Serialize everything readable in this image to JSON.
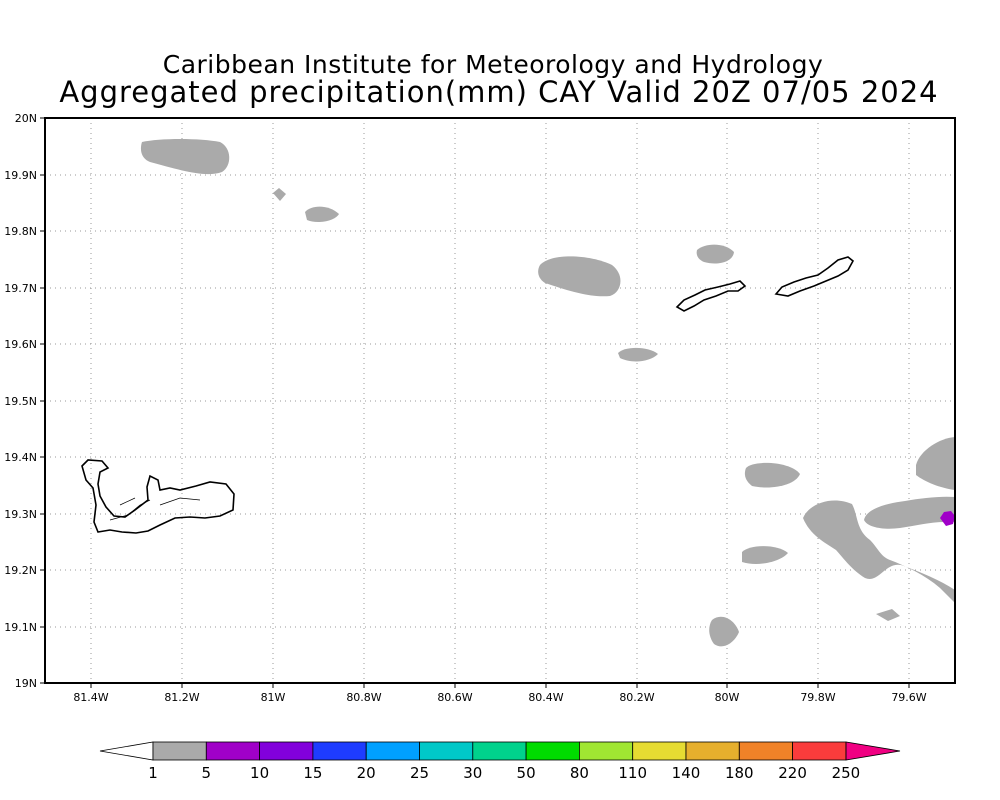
{
  "title": {
    "line1": "Caribbean Institute for Meteorology and Hydrology",
    "line2": "Aggregated precipitation(mm) CAY Valid 20Z 07/05 2024"
  },
  "map": {
    "lat_labels": [
      "20N",
      "19.9N",
      "19.8N",
      "19.7N",
      "19.6N",
      "19.5N",
      "19.4N",
      "19.3N",
      "19.2N",
      "19.1N",
      "19N"
    ],
    "lon_labels": [
      "81.4W",
      "81.2W",
      "81W",
      "80.8W",
      "80.6W",
      "80.4W",
      "80.2W",
      "80W",
      "79.8W",
      "79.6W"
    ],
    "grid": true,
    "colors": {
      "rain_1_5": "#aaaaaa",
      "rain_5_10": "#a000c8",
      "coast": "#000000"
    }
  },
  "colorbar": {
    "labels": [
      "1",
      "5",
      "10",
      "15",
      "20",
      "25",
      "30",
      "50",
      "80",
      "110",
      "140",
      "180",
      "220",
      "250"
    ],
    "colors": [
      "#aaaaaa",
      "#a000c8",
      "#8200dc",
      "#1e3cff",
      "#00a0ff",
      "#00c8c8",
      "#00d28c",
      "#00dc00",
      "#a0e632",
      "#e6dc32",
      "#e6af2d",
      "#f08228",
      "#fa3c3c",
      "#f00082"
    ]
  }
}
